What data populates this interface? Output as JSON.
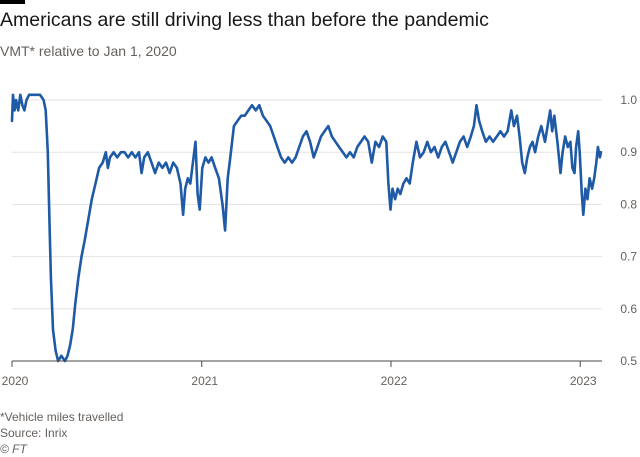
{
  "header": {
    "title": "Americans are still driving less than before the pandemic",
    "subtitle": "VMT* relative to Jan 1, 2020"
  },
  "footer": {
    "footnote": "*Vehicle miles travelled",
    "source": "Source: Inrix",
    "credit": "© FT"
  },
  "colors": {
    "line": "#1f5aa6",
    "grid": "#e6e2de",
    "axis": "#4d4845",
    "text": "#66605c",
    "topbar": "#000000"
  },
  "chart_data": {
    "type": "line",
    "title": "Americans are still driving less than before the pandemic",
    "subtitle": "VMT* relative to Jan 1, 2020",
    "xlabel": "",
    "ylabel": "",
    "xlim": [
      "2020-01-01",
      "2023-02-12"
    ],
    "ylim": [
      0.5,
      1.0
    ],
    "y_ticks": [
      0.5,
      0.6,
      0.7,
      0.8,
      0.9,
      1.0
    ],
    "y_tick_labels": [
      "0.5",
      "0.6",
      "0.7",
      "0.8",
      "0.9",
      "1.0"
    ],
    "y_axis_side": "right",
    "x_ticks": [
      "2020-01-01",
      "2021-01-01",
      "2022-01-01",
      "2023-01-01"
    ],
    "x_tick_labels": [
      "2020",
      "2021",
      "2022",
      "2023"
    ],
    "grid": "horizontal",
    "legend": "none",
    "series": [
      {
        "values": [
          [
            "2020-01-01",
            0.96
          ],
          [
            "2020-01-03",
            1.01
          ],
          [
            "2020-01-06",
            0.98
          ],
          [
            "2020-01-09",
            1.0
          ],
          [
            "2020-01-13",
            0.98
          ],
          [
            "2020-01-17",
            1.01
          ],
          [
            "2020-01-21",
            0.99
          ],
          [
            "2020-01-25",
            0.98
          ],
          [
            "2020-01-29",
            1.0
          ],
          [
            "2020-02-03",
            1.01
          ],
          [
            "2020-02-10",
            1.01
          ],
          [
            "2020-02-17",
            1.01
          ],
          [
            "2020-02-24",
            1.01
          ],
          [
            "2020-03-02",
            1.0
          ],
          [
            "2020-03-06",
            0.98
          ],
          [
            "2020-03-10",
            0.9
          ],
          [
            "2020-03-13",
            0.78
          ],
          [
            "2020-03-16",
            0.66
          ],
          [
            "2020-03-20",
            0.56
          ],
          [
            "2020-03-25",
            0.52
          ],
          [
            "2020-03-30",
            0.5
          ],
          [
            "2020-04-05",
            0.51
          ],
          [
            "2020-04-12",
            0.5
          ],
          [
            "2020-04-17",
            0.51
          ],
          [
            "2020-04-22",
            0.53
          ],
          [
            "2020-04-27",
            0.56
          ],
          [
            "2020-05-02",
            0.61
          ],
          [
            "2020-05-08",
            0.66
          ],
          [
            "2020-05-14",
            0.7
          ],
          [
            "2020-05-20",
            0.73
          ],
          [
            "2020-05-27",
            0.77
          ],
          [
            "2020-06-03",
            0.81
          ],
          [
            "2020-06-10",
            0.84
          ],
          [
            "2020-06-17",
            0.87
          ],
          [
            "2020-06-24",
            0.88
          ],
          [
            "2020-06-30",
            0.9
          ],
          [
            "2020-07-04",
            0.87
          ],
          [
            "2020-07-08",
            0.89
          ],
          [
            "2020-07-15",
            0.9
          ],
          [
            "2020-07-22",
            0.89
          ],
          [
            "2020-07-29",
            0.9
          ],
          [
            "2020-08-05",
            0.9
          ],
          [
            "2020-08-12",
            0.89
          ],
          [
            "2020-08-19",
            0.9
          ],
          [
            "2020-08-26",
            0.89
          ],
          [
            "2020-09-02",
            0.9
          ],
          [
            "2020-09-07",
            0.86
          ],
          [
            "2020-09-12",
            0.89
          ],
          [
            "2020-09-19",
            0.9
          ],
          [
            "2020-09-26",
            0.88
          ],
          [
            "2020-10-03",
            0.86
          ],
          [
            "2020-10-10",
            0.88
          ],
          [
            "2020-10-17",
            0.87
          ],
          [
            "2020-10-24",
            0.88
          ],
          [
            "2020-10-31",
            0.86
          ],
          [
            "2020-11-07",
            0.88
          ],
          [
            "2020-11-14",
            0.87
          ],
          [
            "2020-11-21",
            0.84
          ],
          [
            "2020-11-26",
            0.78
          ],
          [
            "2020-11-30",
            0.83
          ],
          [
            "2020-12-05",
            0.85
          ],
          [
            "2020-12-10",
            0.84
          ],
          [
            "2020-12-15",
            0.88
          ],
          [
            "2020-12-20",
            0.92
          ],
          [
            "2020-12-24",
            0.82
          ],
          [
            "2020-12-28",
            0.79
          ],
          [
            "2021-01-02",
            0.87
          ],
          [
            "2021-01-08",
            0.89
          ],
          [
            "2021-01-14",
            0.88
          ],
          [
            "2021-01-20",
            0.89
          ],
          [
            "2021-01-27",
            0.87
          ],
          [
            "2021-02-03",
            0.85
          ],
          [
            "2021-02-10",
            0.8
          ],
          [
            "2021-02-15",
            0.75
          ],
          [
            "2021-02-20",
            0.85
          ],
          [
            "2021-02-25",
            0.89
          ],
          [
            "2021-03-04",
            0.95
          ],
          [
            "2021-03-11",
            0.96
          ],
          [
            "2021-03-18",
            0.97
          ],
          [
            "2021-03-25",
            0.97
          ],
          [
            "2021-04-01",
            0.98
          ],
          [
            "2021-04-08",
            0.99
          ],
          [
            "2021-04-15",
            0.98
          ],
          [
            "2021-04-22",
            0.99
          ],
          [
            "2021-04-29",
            0.97
          ],
          [
            "2021-05-06",
            0.96
          ],
          [
            "2021-05-13",
            0.95
          ],
          [
            "2021-05-20",
            0.93
          ],
          [
            "2021-05-27",
            0.91
          ],
          [
            "2021-06-03",
            0.89
          ],
          [
            "2021-06-10",
            0.88
          ],
          [
            "2021-06-17",
            0.89
          ],
          [
            "2021-06-24",
            0.88
          ],
          [
            "2021-07-01",
            0.89
          ],
          [
            "2021-07-08",
            0.91
          ],
          [
            "2021-07-15",
            0.93
          ],
          [
            "2021-07-22",
            0.94
          ],
          [
            "2021-07-29",
            0.92
          ],
          [
            "2021-08-05",
            0.89
          ],
          [
            "2021-08-12",
            0.91
          ],
          [
            "2021-08-19",
            0.93
          ],
          [
            "2021-08-26",
            0.94
          ],
          [
            "2021-09-02",
            0.95
          ],
          [
            "2021-09-09",
            0.93
          ],
          [
            "2021-09-16",
            0.92
          ],
          [
            "2021-09-23",
            0.91
          ],
          [
            "2021-09-30",
            0.9
          ],
          [
            "2021-10-07",
            0.89
          ],
          [
            "2021-10-14",
            0.9
          ],
          [
            "2021-10-21",
            0.89
          ],
          [
            "2021-10-28",
            0.91
          ],
          [
            "2021-11-04",
            0.92
          ],
          [
            "2021-11-11",
            0.93
          ],
          [
            "2021-11-18",
            0.92
          ],
          [
            "2021-11-25",
            0.88
          ],
          [
            "2021-12-02",
            0.92
          ],
          [
            "2021-12-09",
            0.91
          ],
          [
            "2021-12-16",
            0.93
          ],
          [
            "2021-12-23",
            0.92
          ],
          [
            "2021-12-27",
            0.84
          ],
          [
            "2021-12-31",
            0.79
          ],
          [
            "2022-01-04",
            0.83
          ],
          [
            "2022-01-09",
            0.81
          ],
          [
            "2022-01-14",
            0.83
          ],
          [
            "2022-01-19",
            0.82
          ],
          [
            "2022-01-25",
            0.84
          ],
          [
            "2022-01-31",
            0.85
          ],
          [
            "2022-02-06",
            0.84
          ],
          [
            "2022-02-12",
            0.88
          ],
          [
            "2022-02-19",
            0.92
          ],
          [
            "2022-02-26",
            0.89
          ],
          [
            "2022-03-05",
            0.9
          ],
          [
            "2022-03-12",
            0.92
          ],
          [
            "2022-03-19",
            0.9
          ],
          [
            "2022-03-26",
            0.91
          ],
          [
            "2022-04-02",
            0.89
          ],
          [
            "2022-04-09",
            0.91
          ],
          [
            "2022-04-16",
            0.92
          ],
          [
            "2022-04-23",
            0.9
          ],
          [
            "2022-04-30",
            0.88
          ],
          [
            "2022-05-07",
            0.9
          ],
          [
            "2022-05-14",
            0.92
          ],
          [
            "2022-05-21",
            0.93
          ],
          [
            "2022-05-28",
            0.91
          ],
          [
            "2022-06-04",
            0.93
          ],
          [
            "2022-06-10",
            0.95
          ],
          [
            "2022-06-15",
            0.99
          ],
          [
            "2022-06-20",
            0.96
          ],
          [
            "2022-06-26",
            0.94
          ],
          [
            "2022-07-03",
            0.92
          ],
          [
            "2022-07-10",
            0.93
          ],
          [
            "2022-07-17",
            0.92
          ],
          [
            "2022-07-24",
            0.93
          ],
          [
            "2022-07-31",
            0.94
          ],
          [
            "2022-08-07",
            0.93
          ],
          [
            "2022-08-14",
            0.94
          ],
          [
            "2022-08-21",
            0.98
          ],
          [
            "2022-08-26",
            0.95
          ],
          [
            "2022-09-01",
            0.97
          ],
          [
            "2022-09-06",
            0.93
          ],
          [
            "2022-09-11",
            0.88
          ],
          [
            "2022-09-16",
            0.86
          ],
          [
            "2022-09-21",
            0.89
          ],
          [
            "2022-09-26",
            0.91
          ],
          [
            "2022-10-01",
            0.92
          ],
          [
            "2022-10-06",
            0.9
          ],
          [
            "2022-10-12",
            0.93
          ],
          [
            "2022-10-18",
            0.95
          ],
          [
            "2022-10-25",
            0.92
          ],
          [
            "2022-10-30",
            0.95
          ],
          [
            "2022-11-04",
            0.98
          ],
          [
            "2022-11-08",
            0.94
          ],
          [
            "2022-11-12",
            0.97
          ],
          [
            "2022-11-18",
            0.92
          ],
          [
            "2022-11-24",
            0.86
          ],
          [
            "2022-11-28",
            0.9
          ],
          [
            "2022-12-03",
            0.93
          ],
          [
            "2022-12-08",
            0.91
          ],
          [
            "2022-12-13",
            0.92
          ],
          [
            "2022-12-17",
            0.87
          ],
          [
            "2022-12-21",
            0.86
          ],
          [
            "2022-12-24",
            0.91
          ],
          [
            "2022-12-28",
            0.94
          ],
          [
            "2022-12-31",
            0.9
          ],
          [
            "2023-01-04",
            0.82
          ],
          [
            "2023-01-07",
            0.78
          ],
          [
            "2023-01-11",
            0.83
          ],
          [
            "2023-01-15",
            0.81
          ],
          [
            "2023-01-19",
            0.85
          ],
          [
            "2023-01-24",
            0.83
          ],
          [
            "2023-01-28",
            0.85
          ],
          [
            "2023-02-01",
            0.88
          ],
          [
            "2023-02-04",
            0.91
          ],
          [
            "2023-02-08",
            0.89
          ],
          [
            "2023-02-10",
            0.9
          ]
        ]
      }
    ]
  }
}
